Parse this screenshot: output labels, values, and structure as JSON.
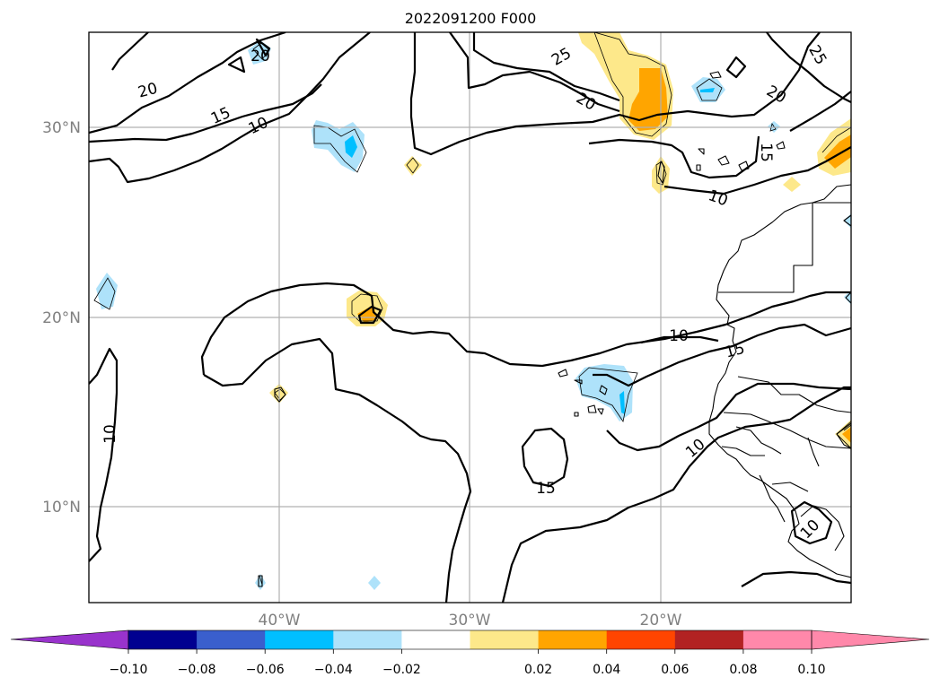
{
  "title": "2022091200 F000",
  "latitude_labels": [
    "30°N",
    "20°N",
    "10°N"
  ],
  "longitude_labels": [
    "40°W",
    "30°W",
    "20°W"
  ],
  "contour_labels": [
    "20",
    "20",
    "15",
    "10",
    "25",
    "25",
    "20",
    "20",
    "15",
    "10",
    "10",
    "15",
    "10",
    "10",
    "15",
    "10"
  ],
  "colorbar": {
    "tick_labels": [
      "−0.10",
      "−0.08",
      "−0.06",
      "−0.04",
      "−0.02",
      "0.02",
      "0.04",
      "0.06",
      "0.08",
      "0.10"
    ],
    "colors": {
      "under": "#9933cc",
      "bins": [
        "#000090",
        "#3a5fcd",
        "#00bfff",
        "#aee2fa",
        "#ffffff",
        "#fde88a",
        "#ffa500",
        "#ff4500",
        "#b22222",
        "#ff88aa"
      ],
      "over": "#ff88aa"
    }
  },
  "colors": {
    "light_blue": "#aee2fa",
    "sky_blue": "#00bfff",
    "light_yellow": "#fde88a",
    "orange": "#ffa500",
    "grid": "#b0b0b0",
    "contour": "#000000"
  }
}
